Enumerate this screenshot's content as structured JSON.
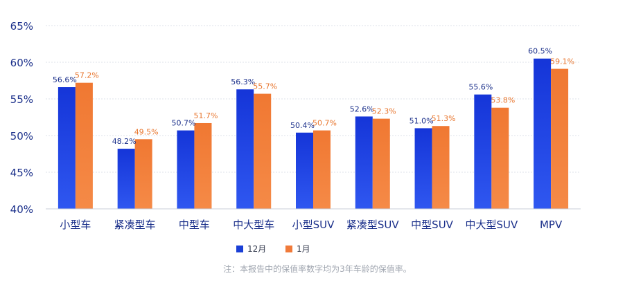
{
  "chart_data": {
    "type": "bar",
    "categories": [
      "小型车",
      "紧凑型车",
      "中型车",
      "中大型车",
      "小型SUV",
      "紧凑型SUV",
      "中型SUV",
      "中大型SUV",
      "MPV"
    ],
    "series": [
      {
        "name": "12月",
        "values": [
          56.6,
          48.2,
          50.7,
          56.3,
          50.4,
          52.6,
          51.0,
          55.6,
          60.5
        ],
        "labels": [
          "56.6%",
          "48.2%",
          "50.7%",
          "56.3%",
          "50.4%",
          "52.6%",
          "51.0%",
          "55.6%",
          "60.5%"
        ],
        "color": "#1a3fd6"
      },
      {
        "name": "1月",
        "values": [
          57.2,
          49.5,
          51.7,
          55.7,
          50.7,
          52.3,
          51.3,
          53.8,
          59.1
        ],
        "labels": [
          "57.2%",
          "49.5%",
          "51.7%",
          "55.7%",
          "50.7%",
          "52.3%",
          "51.3%",
          "53.8%",
          "59.1%"
        ],
        "color": "#f07a3a"
      }
    ],
    "ylim": [
      40,
      65
    ],
    "yticks": [
      "40%",
      "45%",
      "50%",
      "55%",
      "60%",
      "65%"
    ],
    "ytick_values": [
      40,
      45,
      50,
      55,
      60,
      65
    ],
    "grid": true,
    "legend_position": "bottom-center",
    "note": "注：本报告中的保值率数字均为3年车龄的保值率。",
    "colors": {
      "series1_label": "#1a2f8a",
      "series2_label": "#e8762e",
      "axis_text": "#1a2f8a",
      "grid": "#dde2ea",
      "note": "#a0a6b0"
    }
  }
}
